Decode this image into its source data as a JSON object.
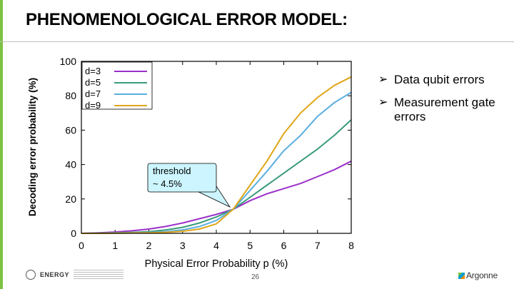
{
  "slide": {
    "title": "PHENOMENOLOGICAL ERROR MODEL:",
    "page_number": "26",
    "bullets": [
      "Data qubit errors",
      "Measurement gate errors"
    ],
    "bullet_icon": "arrow-bullet-icon",
    "footer": {
      "left_logo": "ENERGY",
      "left_icons": [
        "doe-seal-icon"
      ],
      "right_logo": "Argonne"
    },
    "colors": {
      "accent_bar": "#7dc242"
    }
  },
  "chart_data": {
    "type": "line",
    "xlabel": "Physical Error Probability p (%)",
    "ylabel": "Decoding error probability (%)",
    "xlim": [
      0,
      8
    ],
    "ylim": [
      0,
      100
    ],
    "x_ticks": [
      "0",
      "1",
      "2",
      "3",
      "4",
      "5",
      "6",
      "7",
      "8"
    ],
    "y_ticks": [
      "0",
      "20",
      "40",
      "60",
      "80",
      "100"
    ],
    "legend_position": "top-left",
    "grid": false,
    "x": [
      0,
      0.5,
      1,
      1.5,
      2,
      2.5,
      3,
      3.5,
      4,
      4.5,
      5,
      5.5,
      6,
      6.5,
      7,
      7.5,
      8
    ],
    "series": [
      {
        "name": "d=3",
        "color": "#9b30c9",
        "values": [
          0,
          0.3,
          0.8,
          1.5,
          2.5,
          4,
          6,
          8.5,
          11,
          14,
          19,
          23,
          26,
          29,
          33,
          37,
          42
        ]
      },
      {
        "name": "d=5",
        "color": "#3a9b7a",
        "values": [
          0,
          0.1,
          0.3,
          0.6,
          1,
          2,
          3.5,
          6,
          9.5,
          14,
          21,
          28,
          35,
          42,
          49,
          57,
          66
        ]
      },
      {
        "name": "d=7",
        "color": "#5aaee0",
        "values": [
          0,
          0.1,
          0.2,
          0.3,
          0.5,
          1,
          2,
          4,
          7.5,
          14,
          25,
          36,
          48,
          57,
          68,
          76,
          82
        ]
      },
      {
        "name": "d=9",
        "color": "#e0a61a",
        "values": [
          0,
          0,
          0.1,
          0.2,
          0.3,
          0.6,
          1.2,
          2.5,
          5.5,
          14,
          28,
          42,
          58,
          70,
          79,
          86,
          91
        ]
      }
    ],
    "annotation": {
      "text_line1": "threshold",
      "text_line2": "~ 4.5%",
      "x": 4.5,
      "y": 14
    }
  }
}
